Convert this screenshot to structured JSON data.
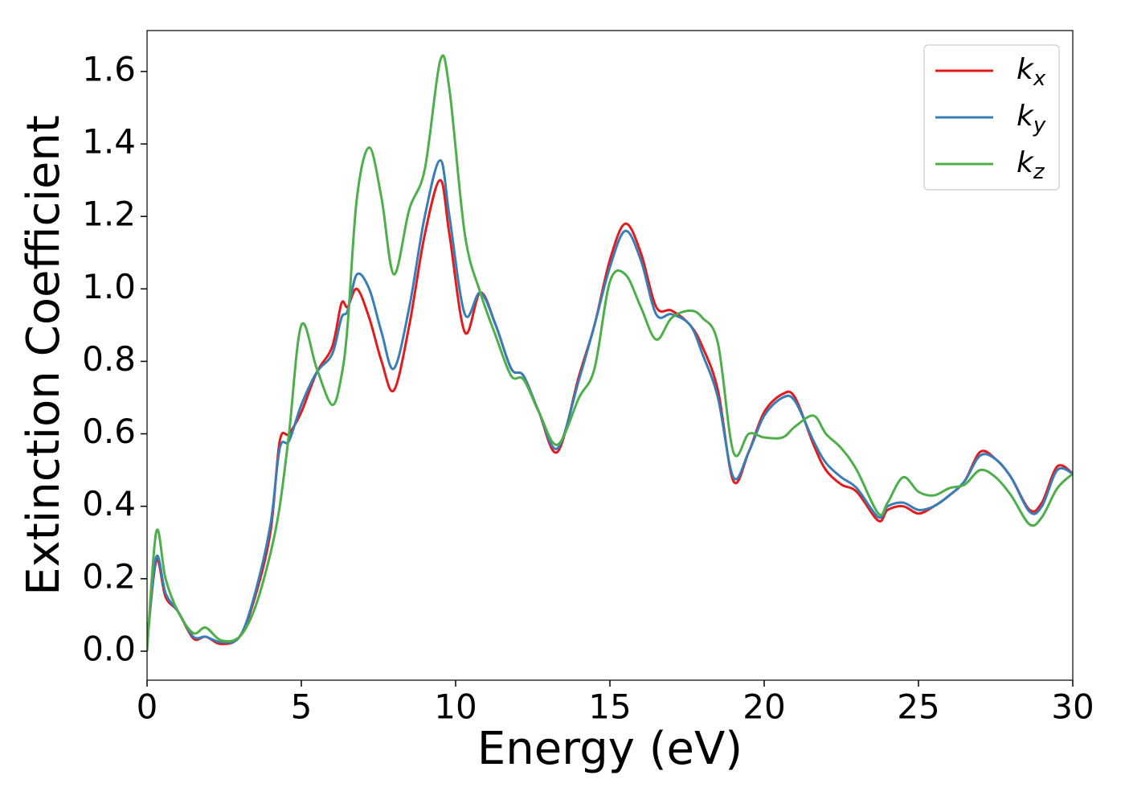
{
  "chart_data": {
    "type": "line",
    "xlabel": "Energy (eV)",
    "ylabel": "Extinction Coefficient",
    "x": [
      0,
      0.3,
      0.6,
      1.0,
      1.5,
      1.9,
      2.4,
      3.0,
      3.5,
      4.0,
      4.3,
      4.6,
      5.0,
      5.5,
      6.0,
      6.3,
      6.5,
      6.8,
      7.2,
      7.6,
      8.0,
      8.5,
      9.0,
      9.5,
      9.8,
      10.3,
      10.8,
      11.3,
      11.8,
      12.2,
      12.7,
      13.3,
      14.0,
      14.5,
      15.0,
      15.5,
      16.0,
      16.5,
      17.0,
      17.6,
      18.0,
      18.5,
      19.0,
      19.5,
      20.0,
      20.6,
      21.0,
      21.6,
      22.0,
      22.5,
      23.0,
      23.7,
      24.0,
      24.5,
      25.0,
      25.5,
      26.0,
      26.5,
      27.0,
      27.5,
      28.0,
      28.6,
      29.0,
      29.5,
      30.0
    ],
    "series": [
      {
        "name": "kx",
        "color": "#e41a1c",
        "values": [
          0.02,
          0.25,
          0.15,
          0.11,
          0.035,
          0.04,
          0.02,
          0.04,
          0.15,
          0.33,
          0.58,
          0.6,
          0.66,
          0.77,
          0.84,
          0.96,
          0.95,
          1.0,
          0.92,
          0.8,
          0.72,
          0.9,
          1.15,
          1.3,
          1.15,
          0.88,
          0.99,
          0.9,
          0.78,
          0.76,
          0.66,
          0.55,
          0.76,
          0.9,
          1.08,
          1.18,
          1.1,
          0.95,
          0.94,
          0.9,
          0.84,
          0.72,
          0.47,
          0.55,
          0.66,
          0.71,
          0.7,
          0.57,
          0.5,
          0.46,
          0.44,
          0.36,
          0.39,
          0.4,
          0.38,
          0.4,
          0.43,
          0.47,
          0.55,
          0.53,
          0.48,
          0.39,
          0.41,
          0.51,
          0.49
        ]
      },
      {
        "name": "ky",
        "color": "#377eb8",
        "values": [
          0.02,
          0.26,
          0.16,
          0.11,
          0.04,
          0.04,
          0.025,
          0.04,
          0.16,
          0.35,
          0.56,
          0.58,
          0.68,
          0.77,
          0.82,
          0.92,
          0.94,
          1.04,
          1.0,
          0.88,
          0.78,
          0.95,
          1.2,
          1.355,
          1.2,
          0.93,
          0.99,
          0.9,
          0.78,
          0.76,
          0.66,
          0.56,
          0.75,
          0.9,
          1.06,
          1.16,
          1.08,
          0.93,
          0.93,
          0.9,
          0.82,
          0.7,
          0.48,
          0.55,
          0.65,
          0.7,
          0.69,
          0.58,
          0.52,
          0.48,
          0.45,
          0.37,
          0.4,
          0.41,
          0.39,
          0.4,
          0.43,
          0.47,
          0.54,
          0.53,
          0.48,
          0.385,
          0.4,
          0.5,
          0.49
        ]
      },
      {
        "name": "kz",
        "color": "#4daf4a",
        "values": [
          0.0,
          0.33,
          0.2,
          0.11,
          0.05,
          0.065,
          0.03,
          0.04,
          0.12,
          0.27,
          0.4,
          0.6,
          0.9,
          0.78,
          0.68,
          0.76,
          0.9,
          1.25,
          1.39,
          1.25,
          1.04,
          1.22,
          1.33,
          1.63,
          1.55,
          1.15,
          0.99,
          0.87,
          0.76,
          0.75,
          0.66,
          0.57,
          0.7,
          0.78,
          1.02,
          1.04,
          0.95,
          0.86,
          0.92,
          0.94,
          0.92,
          0.85,
          0.55,
          0.6,
          0.59,
          0.59,
          0.62,
          0.65,
          0.6,
          0.56,
          0.5,
          0.38,
          0.41,
          0.48,
          0.44,
          0.43,
          0.45,
          0.46,
          0.5,
          0.48,
          0.43,
          0.35,
          0.37,
          0.45,
          0.49
        ]
      }
    ],
    "xlim": [
      0,
      30
    ],
    "xticks": [
      0,
      5,
      10,
      15,
      20,
      25,
      30
    ],
    "ylim": [
      -0.08,
      1.713
    ],
    "yticks": [
      {
        "value": 0,
        "label": "0.0"
      },
      {
        "value": 0.2,
        "label": "0.2"
      },
      {
        "value": 0.4,
        "label": "0.4"
      },
      {
        "value": 0.6,
        "label": "0.6"
      },
      {
        "value": 0.8,
        "label": "0.8"
      },
      {
        "value": 1.0,
        "label": "1.0"
      },
      {
        "value": 1.2,
        "label": "1.2"
      },
      {
        "value": 1.4,
        "label": "1.4"
      },
      {
        "value": 1.6,
        "label": "1.6"
      }
    ],
    "legend": "upper right"
  }
}
